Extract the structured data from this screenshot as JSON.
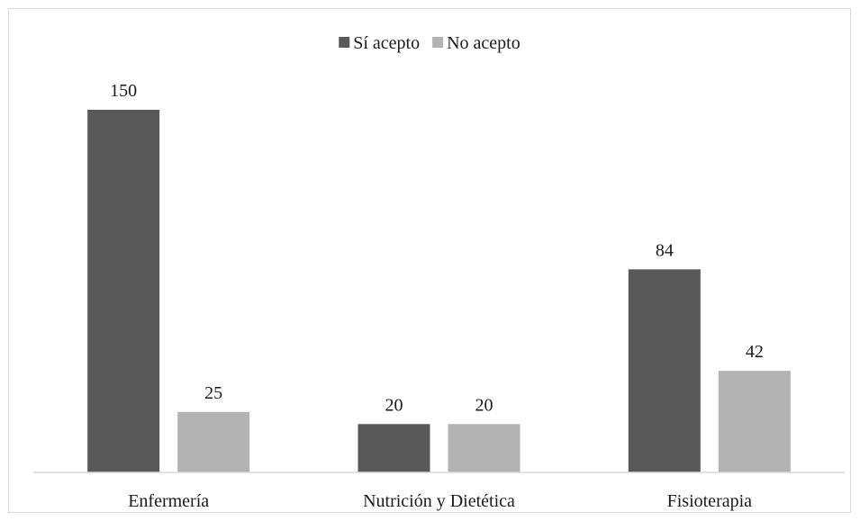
{
  "chart_data": {
    "type": "bar",
    "categories": [
      "Enfermería",
      "Nutrición y Dietética",
      "Fisioterapia"
    ],
    "series": [
      {
        "name": "Sí acepto",
        "values": [
          150,
          20,
          84
        ],
        "color": "#595959"
      },
      {
        "name": "No acepto",
        "values": [
          25,
          20,
          42
        ],
        "color": "#b3b3b3"
      }
    ],
    "title": "",
    "xlabel": "",
    "ylabel": "",
    "ylim": [
      0,
      165
    ],
    "grid": false,
    "legend": "top-center",
    "data_labels": true
  }
}
